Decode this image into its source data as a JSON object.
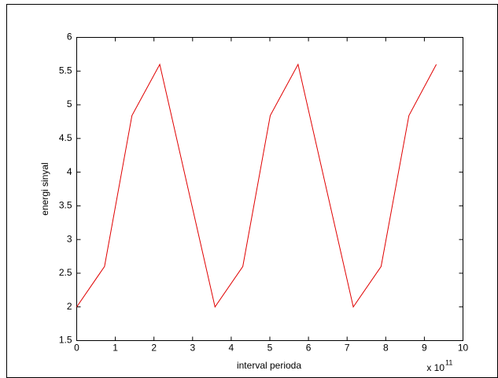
{
  "chart_data": {
    "type": "line",
    "x_label": "interval perioda",
    "y_label": "energi sinyal",
    "x_multiplier": {
      "base": "x 10",
      "exponent": "11"
    },
    "x": [
      0,
      0.72,
      1.43,
      2.15,
      3.58,
      4.3,
      5.01,
      5.73,
      7.16,
      7.88,
      8.6,
      9.31
    ],
    "series": [
      {
        "color": "#e00000",
        "values": [
          2,
          2.6,
          4.84,
          5.6,
          2,
          2.6,
          4.84,
          5.6,
          2,
          2.6,
          4.84,
          5.6
        ]
      }
    ],
    "xlim": [
      0,
      10
    ],
    "xticks": [
      0,
      1,
      2,
      3,
      4,
      5,
      6,
      7,
      8,
      9,
      10
    ],
    "ylim": [
      1.5,
      6
    ],
    "yticks": [
      1.5,
      2,
      2.5,
      3,
      3.5,
      4,
      4.5,
      5,
      5.5,
      6
    ],
    "grid": false
  }
}
